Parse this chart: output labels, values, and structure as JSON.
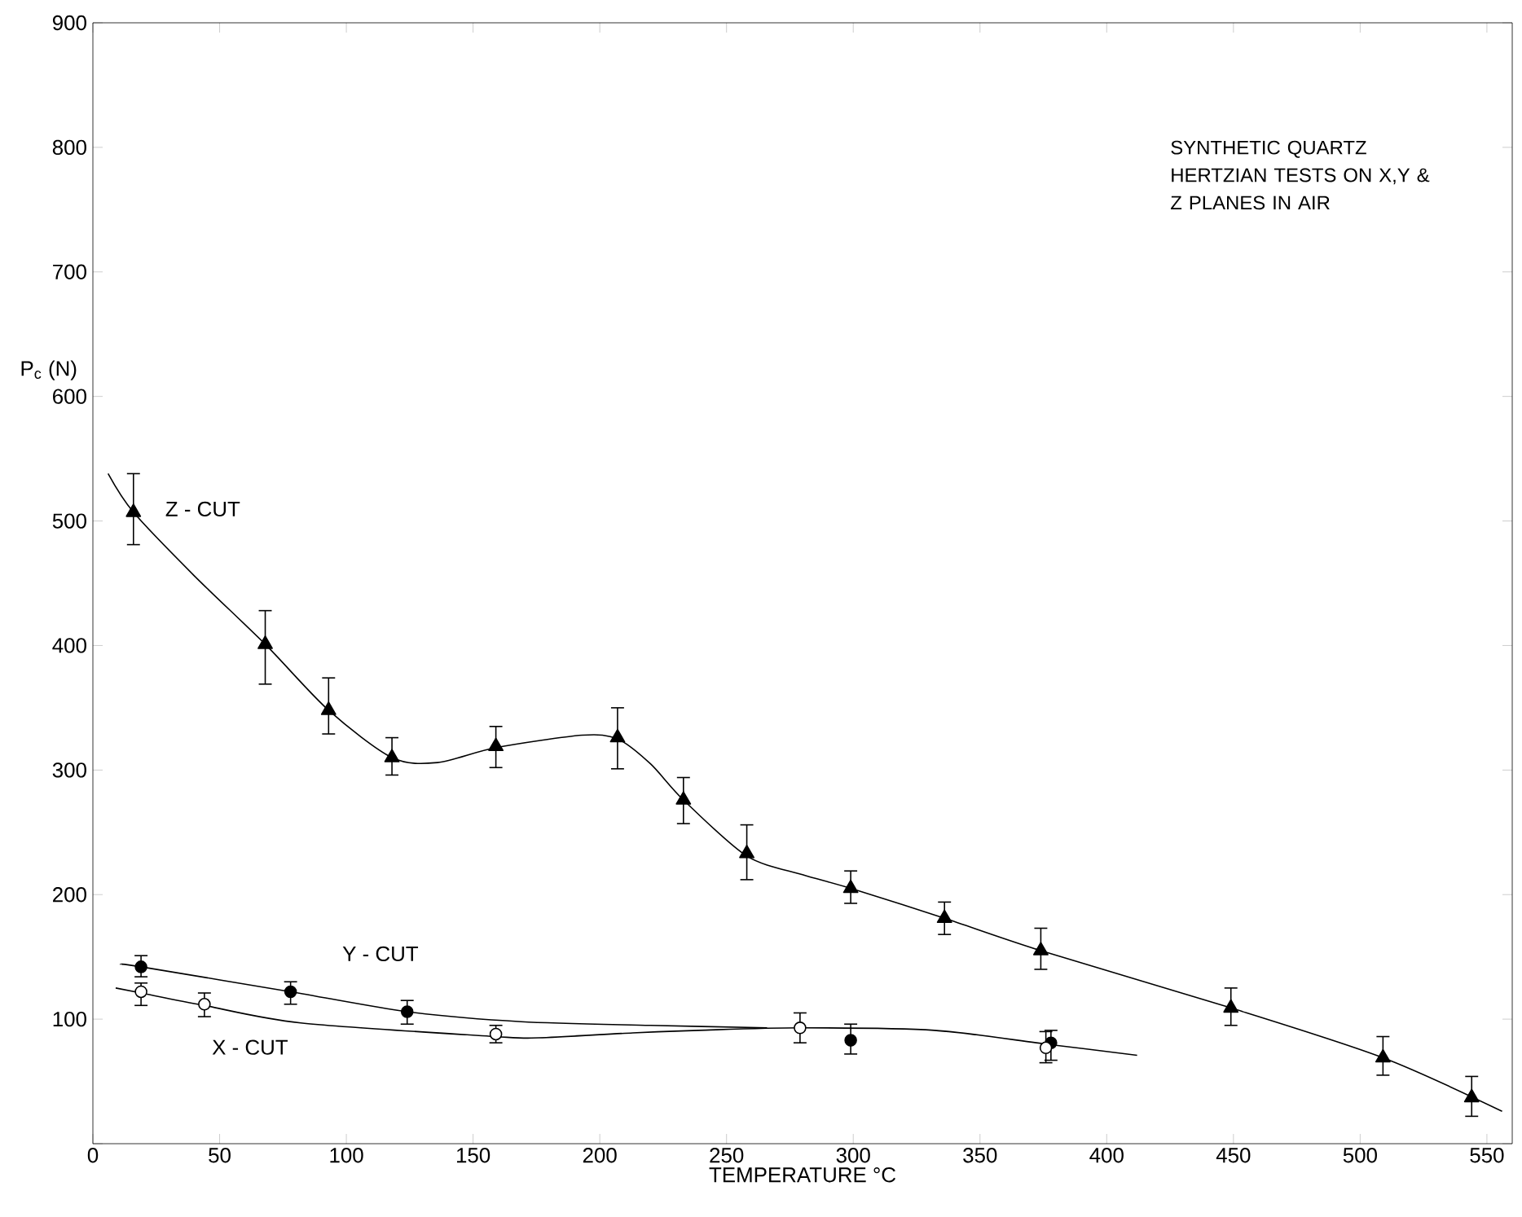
{
  "chart_data": {
    "type": "scatter",
    "title": "SYNTHETIC QUARTZ HERTZIAN TESTS ON X,Y & Z PLANES IN AIR",
    "xlabel": "TEMPERATURE °C",
    "ylabel": "P$_{c}$  (N)",
    "xlim": [
      0,
      560
    ],
    "ylim": [
      0,
      900
    ],
    "xticks": [
      0,
      50,
      100,
      150,
      200,
      250,
      300,
      350,
      400,
      450,
      500,
      550
    ],
    "yticks": [
      {
        "value": 0,
        "label": null
      },
      100,
      200,
      300,
      400,
      500,
      600,
      700,
      800,
      900
    ],
    "series": [
      {
        "type": "line",
        "color": "#000000",
        "marker": "none",
        "line_style": "solid",
        "x": [
          6,
          16,
          40,
          68,
          93,
          118,
          136,
          159,
          193,
          207,
          220,
          233,
          258,
          280,
          299,
          336,
          374,
          449,
          509,
          556
        ],
        "values": [
          538,
          507,
          456,
          401,
          348,
          310,
          306,
          318,
          328,
          325,
          305,
          276,
          231,
          216,
          205,
          181,
          155,
          109,
          69,
          26
        ]
      },
      {
        "type": "line",
        "color": "#000000",
        "marker": "none",
        "line_style": "solid",
        "x": [
          11,
          19,
          78,
          124,
          169,
          220,
          266
        ],
        "values": [
          144,
          142,
          122,
          106,
          98,
          95,
          93
        ]
      },
      {
        "type": "line",
        "color": "#000000",
        "marker": "none",
        "line_style": "solid",
        "x": [
          9,
          19,
          44,
          82,
          159,
          176,
          213,
          239,
          279,
          332,
          376,
          412
        ],
        "values": [
          125,
          121,
          111,
          97,
          86,
          85,
          89,
          91,
          93,
          91,
          80,
          71
        ]
      },
      {
        "name": "Z - CUT",
        "color": "#000000",
        "marker": "triangle",
        "x": [
          16,
          68,
          93,
          118,
          159,
          207,
          233,
          258,
          299,
          336,
          374,
          449,
          509,
          544
        ],
        "values": [
          507,
          401,
          348,
          310,
          319,
          326,
          276,
          233,
          205,
          181,
          155,
          109,
          69,
          37
        ],
        "errors": [
          [
            481,
            538
          ],
          [
            369,
            428
          ],
          [
            329,
            374
          ],
          [
            296,
            326
          ],
          [
            302,
            335
          ],
          [
            301,
            350
          ],
          [
            257,
            294
          ],
          [
            212,
            256
          ],
          [
            193,
            219
          ],
          [
            168,
            194
          ],
          [
            140,
            173
          ],
          [
            95,
            125
          ],
          [
            55,
            86
          ],
          [
            22,
            54
          ]
        ]
      },
      {
        "name": "Y - CUT",
        "color": "#000000",
        "marker": "circle",
        "x": [
          19,
          78,
          124,
          299,
          378
        ],
        "values": [
          142,
          122,
          106,
          83,
          81
        ],
        "errors": [
          [
            134,
            151
          ],
          [
            112,
            130
          ],
          [
            96,
            115
          ],
          [
            72,
            96
          ],
          [
            67,
            91
          ]
        ]
      },
      {
        "name": "X - CUT",
        "color": "#ffffff",
        "marker": "circle",
        "x": [
          19,
          44,
          159,
          279,
          376
        ],
        "values": [
          122,
          112,
          88,
          93,
          77
        ],
        "errors": [
          [
            111,
            129
          ],
          [
            102,
            121
          ],
          [
            81,
            95
          ],
          [
            81,
            105
          ],
          [
            65,
            90
          ]
        ]
      }
    ]
  }
}
